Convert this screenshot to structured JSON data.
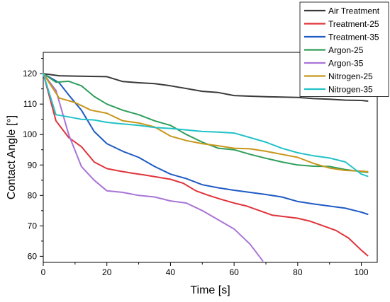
{
  "chart_data": {
    "type": "line",
    "title": "",
    "xlabel": "Time [s]",
    "ylabel": "Contact Angle [°]",
    "xlim": [
      0,
      105
    ],
    "ylim": [
      58,
      127
    ],
    "xticks": [
      0,
      20,
      40,
      60,
      80,
      100
    ],
    "yticks": [
      60,
      70,
      80,
      90,
      100,
      110,
      120
    ],
    "legend_position": "top-right",
    "grid": false,
    "series": [
      {
        "name": "Air Treatment",
        "color": "#3a3a3a",
        "x": [
          0,
          5,
          10,
          15,
          20,
          25,
          30,
          35,
          40,
          45,
          50,
          55,
          60,
          65,
          70,
          75,
          80,
          85,
          90,
          95,
          100,
          102
        ],
        "y": [
          120,
          119.3,
          119.2,
          119.1,
          119,
          117.4,
          117,
          116.7,
          116,
          115.1,
          114.2,
          113.8,
          112.8,
          112.6,
          112.4,
          112.3,
          112.2,
          111.8,
          111.6,
          111.3,
          111.2,
          111
        ]
      },
      {
        "name": "Treatment-25",
        "color": "#e0333a",
        "x": [
          0,
          4,
          8,
          12,
          16,
          20,
          24,
          28,
          32,
          36,
          40,
          44,
          48,
          52,
          56,
          60,
          64,
          68,
          72,
          76,
          80,
          84,
          88,
          92,
          96,
          100,
          102
        ],
        "y": [
          120,
          104.5,
          99,
          96,
          91,
          88.8,
          88,
          87.3,
          86.7,
          86,
          85.3,
          84,
          81.5,
          80,
          78.7,
          77.5,
          76.5,
          75,
          73.5,
          73,
          72.5,
          71.5,
          70,
          68.5,
          66,
          62,
          60.2
        ]
      },
      {
        "name": "Treatment-35",
        "color": "#1f5bc4",
        "x": [
          0,
          5,
          8,
          12,
          16,
          20,
          25,
          30,
          35,
          40,
          45,
          50,
          55,
          60,
          65,
          70,
          75,
          80,
          85,
          90,
          95,
          100,
          102
        ],
        "y": [
          120,
          117,
          113,
          108,
          101,
          97,
          94.5,
          92.5,
          89.5,
          87,
          85.5,
          83.5,
          82.5,
          81.7,
          81,
          80.3,
          79.5,
          78,
          77.2,
          76.5,
          75.8,
          74.5,
          73.8
        ]
      },
      {
        "name": "Argon-25",
        "color": "#2e9e5b",
        "x": [
          0,
          4,
          8,
          12,
          16,
          20,
          25,
          30,
          35,
          40,
          45,
          50,
          55,
          60,
          65,
          70,
          75,
          80,
          85,
          90,
          95,
          100,
          102
        ],
        "y": [
          120,
          117.2,
          117.5,
          116,
          112.5,
          110,
          108,
          106.5,
          104.5,
          103,
          100,
          97.5,
          95.5,
          95,
          93.5,
          92.2,
          91,
          90,
          89.6,
          89.5,
          88.5,
          87.8,
          87.6
        ]
      },
      {
        "name": "Argon-35",
        "color": "#a874d6",
        "x": [
          0,
          4,
          8,
          12,
          16,
          20,
          25,
          30,
          35,
          40,
          45,
          50,
          55,
          60,
          65,
          69
        ],
        "y": [
          120,
          114.5,
          100,
          89.5,
          85,
          81.5,
          81,
          80,
          79.5,
          78.2,
          77.5,
          75,
          72,
          69,
          64,
          58.5
        ]
      },
      {
        "name": "Nitrogen-25",
        "color": "#c8961a",
        "x": [
          0,
          5,
          10,
          15,
          20,
          25,
          30,
          35,
          40,
          45,
          50,
          55,
          60,
          65,
          70,
          75,
          80,
          85,
          90,
          95,
          100,
          102
        ],
        "y": [
          120,
          112,
          110.5,
          108,
          107,
          104.5,
          103.8,
          102.5,
          99.5,
          98,
          97,
          96.3,
          95.5,
          95.3,
          94.5,
          93.5,
          92.5,
          90.5,
          89,
          88.2,
          88,
          87.8
        ]
      },
      {
        "name": "Nitrogen-35",
        "color": "#22c2c8",
        "x": [
          0,
          4,
          8,
          12,
          16,
          20,
          25,
          30,
          35,
          40,
          45,
          50,
          55,
          60,
          65,
          70,
          75,
          80,
          85,
          90,
          95,
          100,
          102
        ],
        "y": [
          120,
          106.5,
          105.8,
          105,
          104.8,
          104,
          103.5,
          103,
          102.3,
          102,
          101.5,
          101,
          100.8,
          100.5,
          99,
          97.5,
          95.5,
          94,
          93,
          92.3,
          91,
          87,
          86.3
        ]
      }
    ]
  }
}
